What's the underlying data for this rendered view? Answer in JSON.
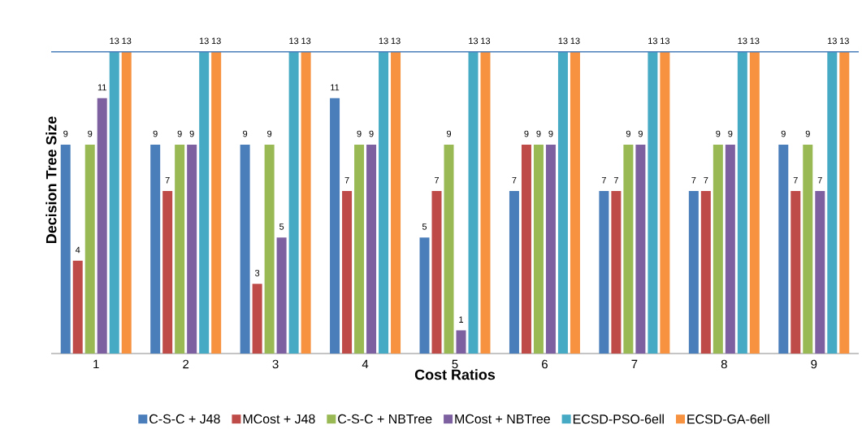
{
  "chart_data": {
    "type": "bar",
    "xlabel": "Cost Ratios",
    "ylabel": "Decision Tree Size",
    "categories": [
      "1",
      "2",
      "3",
      "4",
      "5",
      "6",
      "7",
      "8",
      "9"
    ],
    "series": [
      {
        "name": "C-S-C + J48",
        "color": "#4a7ebb",
        "values": [
          9,
          9,
          9,
          11,
          5,
          7,
          7,
          7,
          9
        ]
      },
      {
        "name": "MCost + J48",
        "color": "#be4b48",
        "values": [
          4,
          7,
          3,
          7,
          7,
          9,
          7,
          7,
          7
        ]
      },
      {
        "name": "C-S-C + NBTree",
        "color": "#98b954",
        "values": [
          9,
          9,
          9,
          9,
          9,
          9,
          9,
          9,
          9
        ]
      },
      {
        "name": "MCost + NBTree",
        "color": "#7d60a0",
        "values": [
          11,
          9,
          5,
          9,
          1,
          9,
          9,
          9,
          7
        ]
      },
      {
        "name": "ECSD-PSO-6ell",
        "color": "#46aac5",
        "values": [
          13,
          13,
          13,
          13,
          13,
          13,
          13,
          13,
          13
        ]
      },
      {
        "name": "ECSD-GA-6ell",
        "color": "#f69240",
        "values": [
          13,
          13,
          13,
          13,
          13,
          13,
          13,
          13,
          13
        ]
      }
    ],
    "ref_lines": [
      {
        "axis": "y",
        "value": 13,
        "color": "#4a7ebb"
      }
    ],
    "data_labels": true,
    "legend": "bottom",
    "tick_labels": "x"
  }
}
